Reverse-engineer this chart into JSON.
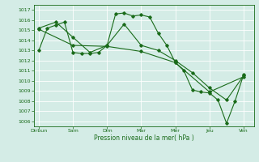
{
  "title": "",
  "xlabel": "Pression niveau de la mer( hPa )",
  "xtick_labels": [
    "Dirbun",
    "Sam",
    "Dim",
    "Mar",
    "Mer",
    "Jeu",
    "Ven"
  ],
  "xtick_positions": [
    0,
    2,
    4,
    6,
    8,
    10,
    12
  ],
  "ylim": [
    1005.5,
    1017.5
  ],
  "background_color": "#d4ece6",
  "grid_color": "#c0ddd8",
  "line_color": "#1a6b1a",
  "series1": {
    "x": [
      0,
      0.5,
      1,
      1.5,
      2,
      2.5,
      3,
      3.5,
      4,
      4.5,
      5,
      5.5,
      6,
      6.5,
      7,
      7.5,
      8,
      8.5,
      9,
      9.5,
      10,
      10.5,
      11,
      11.5,
      12
    ],
    "y": [
      1013.0,
      1015.2,
      1015.5,
      1015.8,
      1012.8,
      1012.7,
      1012.7,
      1012.8,
      1013.5,
      1016.6,
      1016.7,
      1016.4,
      1016.5,
      1016.3,
      1014.7,
      1013.5,
      1011.8,
      1011.0,
      1009.1,
      1008.9,
      1008.8,
      1008.1,
      1005.8,
      1008.0,
      1010.6
    ]
  },
  "series2": {
    "x": [
      0,
      1,
      2,
      3,
      4,
      5,
      6,
      7,
      8,
      9,
      10,
      11,
      12
    ],
    "y": [
      1015.2,
      1015.8,
      1014.3,
      1012.8,
      1013.5,
      1015.6,
      1013.5,
      1013.0,
      1012.0,
      1010.8,
      1009.3,
      1008.1,
      1010.5
    ]
  },
  "series3": {
    "x": [
      0,
      2,
      4,
      6,
      8,
      10,
      12
    ],
    "y": [
      1015.1,
      1013.5,
      1013.4,
      1012.9,
      1011.8,
      1008.9,
      1010.4
    ]
  }
}
